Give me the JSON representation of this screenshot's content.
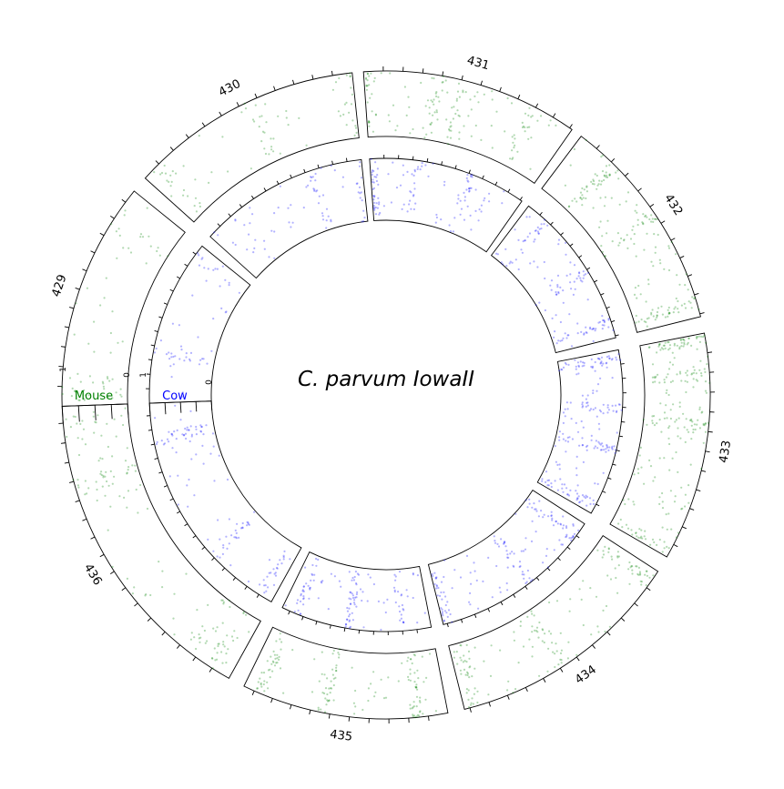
{
  "chart_data": {
    "type": "scatter",
    "title": "C. parvum IowaII",
    "layout": "circular",
    "segments": [
      "429",
      "430",
      "431",
      "432",
      "433",
      "434",
      "435",
      "436"
    ],
    "ylim": [
      0,
      1
    ],
    "radial_tick_labels": {
      "outer_high": "1",
      "outer_low": "0",
      "inner_high": "1",
      "inner_low": "0"
    },
    "series": [
      {
        "name": "Mouse",
        "ring": "outer",
        "color": "#008000",
        "density": [
          {
            "segment": "429",
            "points": 70,
            "clusters": [
              0.05,
              0.12,
              0.85
            ]
          },
          {
            "segment": "430",
            "points": 80,
            "clusters": [
              0.08,
              0.55,
              0.97
            ]
          },
          {
            "segment": "431",
            "points": 150,
            "clusters": [
              0.02,
              0.35,
              0.45,
              0.8
            ]
          },
          {
            "segment": "432",
            "points": 180,
            "clusters": [
              0.2,
              0.5,
              0.93
            ]
          },
          {
            "segment": "433",
            "points": 240,
            "clusters": [
              0.02,
              0.18,
              0.4,
              0.97
            ]
          },
          {
            "segment": "434",
            "points": 160,
            "clusters": [
              0.05,
              0.55,
              0.96
            ]
          },
          {
            "segment": "435",
            "points": 150,
            "clusters": [
              0.15,
              0.6,
              0.92
            ]
          },
          {
            "segment": "436",
            "points": 140,
            "clusters": [
              0.06,
              0.14,
              0.75,
              0.95
            ]
          }
        ]
      },
      {
        "name": "Cow",
        "ring": "inner",
        "color": "#0000ff",
        "density": [
          {
            "segment": "429",
            "points": 55,
            "clusters": [
              0.3,
              0.92
            ]
          },
          {
            "segment": "430",
            "points": 75,
            "clusters": [
              0.2,
              0.7,
              0.98
            ]
          },
          {
            "segment": "431",
            "points": 120,
            "clusters": [
              0.02,
              0.3,
              0.65
            ]
          },
          {
            "segment": "432",
            "points": 130,
            "clusters": [
              0.15,
              0.55,
              0.9
            ]
          },
          {
            "segment": "433",
            "points": 200,
            "clusters": [
              0.05,
              0.35,
              0.6,
              0.95
            ]
          },
          {
            "segment": "434",
            "points": 150,
            "clusters": [
              0.1,
              0.45,
              0.97
            ]
          },
          {
            "segment": "435",
            "points": 130,
            "clusters": [
              0.2,
              0.55,
              0.9
            ]
          },
          {
            "segment": "436",
            "points": 120,
            "clusters": [
              0.05,
              0.3,
              0.85
            ]
          }
        ]
      }
    ],
    "legend": {
      "placement": "left",
      "entries": [
        {
          "label": "Mouse",
          "color": "#008000"
        },
        {
          "label": "Cow",
          "color": "#0000ff"
        }
      ]
    }
  }
}
